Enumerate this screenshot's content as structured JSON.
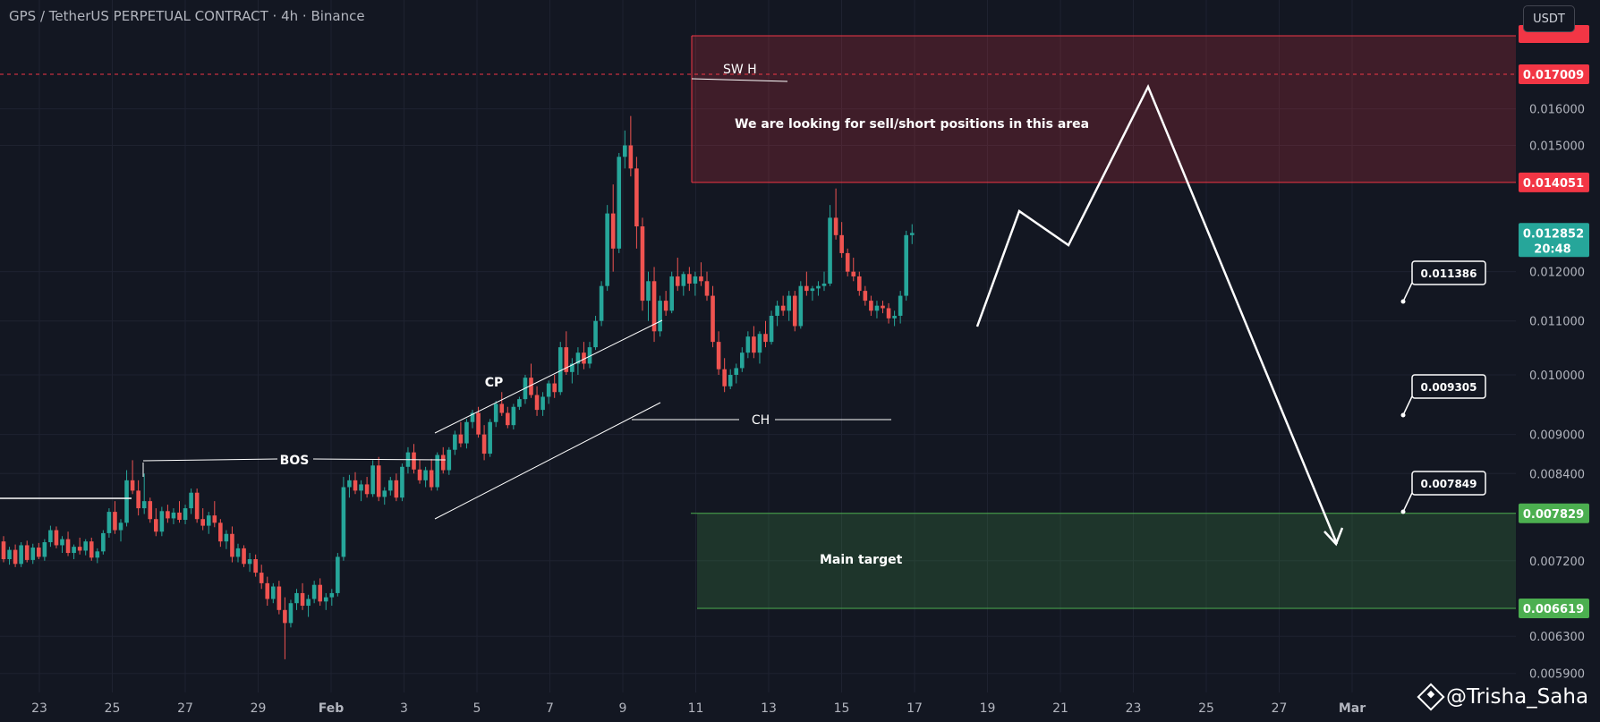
{
  "header": {
    "title": "GPS / TetherUS PERPETUAL CONTRACT · 4h · Binance",
    "currency": "USDT"
  },
  "watermark": "@Trisha_Saha",
  "colors": {
    "background": "#131722",
    "up": "#26a69a",
    "down": "#ef5350",
    "sell_zone": "#f23645",
    "target_zone": "#4caf50",
    "projection": "#ffffff"
  },
  "chart_data": {
    "type": "candlestick",
    "y_scale": "log",
    "price_axis": {
      "ticks": [
        "0.016000",
        "0.015000",
        "0.012000",
        "0.011000",
        "0.010000",
        "0.009000",
        "0.008400",
        "0.007200",
        "0.006300",
        "0.005900"
      ],
      "labels": [
        {
          "value": "0.017009",
          "kind": "line",
          "color": "#f23645"
        },
        {
          "value": "0.014051",
          "kind": "line",
          "color": "#f23645"
        },
        {
          "value": "0.012852",
          "kind": "last",
          "color": "#26a69a",
          "countdown": "20:48"
        },
        {
          "value": "0.007829",
          "kind": "line",
          "color": "#4caf50"
        },
        {
          "value": "0.006619",
          "kind": "line",
          "color": "#4caf50"
        }
      ]
    },
    "time_axis": [
      "23",
      "25",
      "27",
      "29",
      "Feb",
      "3",
      "5",
      "7",
      "9",
      "11",
      "13",
      "15",
      "17",
      "19",
      "21",
      "23",
      "25",
      "27",
      "Mar"
    ],
    "candles": [
      [
        0.00745,
        0.00752,
        0.00718,
        0.00722
      ],
      [
        0.00722,
        0.00738,
        0.00715,
        0.00734
      ],
      [
        0.00734,
        0.00741,
        0.00712,
        0.00716
      ],
      [
        0.00716,
        0.00744,
        0.00712,
        0.0074
      ],
      [
        0.0074,
        0.00746,
        0.00718,
        0.00721
      ],
      [
        0.00721,
        0.00742,
        0.00716,
        0.00737
      ],
      [
        0.00737,
        0.00743,
        0.00722,
        0.00725
      ],
      [
        0.00725,
        0.00748,
        0.0072,
        0.00744
      ],
      [
        0.00744,
        0.00766,
        0.00738,
        0.0076
      ],
      [
        0.0076,
        0.00765,
        0.00736,
        0.0074
      ],
      [
        0.0074,
        0.00752,
        0.0073,
        0.00748
      ],
      [
        0.00748,
        0.00758,
        0.00726,
        0.0073
      ],
      [
        0.0073,
        0.00741,
        0.00722,
        0.00738
      ],
      [
        0.00738,
        0.0075,
        0.00728,
        0.00733
      ],
      [
        0.00733,
        0.00748,
        0.00727,
        0.00745
      ],
      [
        0.00745,
        0.0075,
        0.0072,
        0.00724
      ],
      [
        0.00724,
        0.00736,
        0.00717,
        0.00732
      ],
      [
        0.00732,
        0.0076,
        0.00728,
        0.00756
      ],
      [
        0.00756,
        0.0079,
        0.0075,
        0.00785
      ],
      [
        0.00785,
        0.008,
        0.00755,
        0.0076
      ],
      [
        0.0076,
        0.00775,
        0.00745,
        0.0077
      ],
      [
        0.0077,
        0.00845,
        0.00765,
        0.0083
      ],
      [
        0.0083,
        0.0086,
        0.0081,
        0.00815
      ],
      [
        0.00815,
        0.0083,
        0.0078,
        0.0079
      ],
      [
        0.0079,
        0.0084,
        0.00782,
        0.008
      ],
      [
        0.008,
        0.00805,
        0.0077,
        0.00775
      ],
      [
        0.00775,
        0.0079,
        0.00752,
        0.00758
      ],
      [
        0.00758,
        0.00792,
        0.00752,
        0.00786
      ],
      [
        0.00786,
        0.00795,
        0.0077,
        0.00776
      ],
      [
        0.00776,
        0.0079,
        0.00768,
        0.00784
      ],
      [
        0.00784,
        0.008,
        0.0077,
        0.00774
      ],
      [
        0.00774,
        0.00795,
        0.00768,
        0.0079
      ],
      [
        0.0079,
        0.00818,
        0.00782,
        0.00812
      ],
      [
        0.00812,
        0.00818,
        0.0077,
        0.00775
      ],
      [
        0.00775,
        0.0079,
        0.0076,
        0.00766
      ],
      [
        0.00766,
        0.00785,
        0.00755,
        0.0078
      ],
      [
        0.0078,
        0.008,
        0.00764,
        0.0077
      ],
      [
        0.0077,
        0.00775,
        0.00738,
        0.00745
      ],
      [
        0.00745,
        0.0076,
        0.00735,
        0.00755
      ],
      [
        0.00755,
        0.00765,
        0.00718,
        0.00725
      ],
      [
        0.00725,
        0.00742,
        0.00718,
        0.00736
      ],
      [
        0.00736,
        0.0074,
        0.00712,
        0.00716
      ],
      [
        0.00716,
        0.0073,
        0.00706,
        0.00722
      ],
      [
        0.00722,
        0.00728,
        0.007,
        0.00705
      ],
      [
        0.00705,
        0.00715,
        0.00685,
        0.00692
      ],
      [
        0.00692,
        0.007,
        0.00665,
        0.00673
      ],
      [
        0.00673,
        0.00692,
        0.00668,
        0.00688
      ],
      [
        0.00688,
        0.00695,
        0.00655,
        0.0066
      ],
      [
        0.0066,
        0.00675,
        0.00605,
        0.00645
      ],
      [
        0.00645,
        0.00672,
        0.0064,
        0.00668
      ],
      [
        0.00668,
        0.00685,
        0.0066,
        0.0068
      ],
      [
        0.0068,
        0.00692,
        0.0066,
        0.00665
      ],
      [
        0.00665,
        0.00678,
        0.00652,
        0.00673
      ],
      [
        0.00673,
        0.00695,
        0.00668,
        0.0069
      ],
      [
        0.0069,
        0.00698,
        0.00665,
        0.0067
      ],
      [
        0.0067,
        0.0068,
        0.0066,
        0.00675
      ],
      [
        0.00675,
        0.00685,
        0.00665,
        0.0068
      ],
      [
        0.0068,
        0.0073,
        0.00676,
        0.00725
      ],
      [
        0.00725,
        0.00835,
        0.0072,
        0.0082
      ],
      [
        0.0082,
        0.00838,
        0.00805,
        0.0083
      ],
      [
        0.0083,
        0.00842,
        0.0081,
        0.00815
      ],
      [
        0.00815,
        0.0083,
        0.008,
        0.00824
      ],
      [
        0.00824,
        0.00835,
        0.00805,
        0.0081
      ],
      [
        0.0081,
        0.0086,
        0.00806,
        0.00852
      ],
      [
        0.00852,
        0.00865,
        0.008,
        0.00806
      ],
      [
        0.00806,
        0.0082,
        0.00795,
        0.00815
      ],
      [
        0.00815,
        0.00835,
        0.00808,
        0.0083
      ],
      [
        0.0083,
        0.0084,
        0.008,
        0.00805
      ],
      [
        0.00805,
        0.00855,
        0.008,
        0.0085
      ],
      [
        0.0085,
        0.0088,
        0.0084,
        0.00872
      ],
      [
        0.00872,
        0.00885,
        0.0084,
        0.00846
      ],
      [
        0.00846,
        0.0086,
        0.00825,
        0.0083
      ],
      [
        0.0083,
        0.0085,
        0.0082,
        0.00845
      ],
      [
        0.00845,
        0.00862,
        0.00815,
        0.0082
      ],
      [
        0.0082,
        0.00872,
        0.00815,
        0.00868
      ],
      [
        0.00868,
        0.0088,
        0.0084,
        0.00845
      ],
      [
        0.00845,
        0.0088,
        0.00838,
        0.00876
      ],
      [
        0.00876,
        0.00906,
        0.00868,
        0.009
      ],
      [
        0.009,
        0.0092,
        0.0088,
        0.00886
      ],
      [
        0.00886,
        0.00925,
        0.00878,
        0.0092
      ],
      [
        0.0092,
        0.0094,
        0.0091,
        0.00935
      ],
      [
        0.00935,
        0.00945,
        0.00895,
        0.009
      ],
      [
        0.009,
        0.00915,
        0.0086,
        0.0087
      ],
      [
        0.0087,
        0.00925,
        0.00865,
        0.0092
      ],
      [
        0.0092,
        0.00955,
        0.00912,
        0.0095
      ],
      [
        0.0095,
        0.0097,
        0.0093,
        0.00935
      ],
      [
        0.00935,
        0.00945,
        0.0091,
        0.00915
      ],
      [
        0.00915,
        0.0095,
        0.00908,
        0.00945
      ],
      [
        0.00945,
        0.00962,
        0.0094,
        0.00958
      ],
      [
        0.00958,
        0.01,
        0.0095,
        0.00995
      ],
      [
        0.00995,
        0.0102,
        0.0096,
        0.00965
      ],
      [
        0.00965,
        0.0098,
        0.0093,
        0.0094
      ],
      [
        0.0094,
        0.0097,
        0.0093,
        0.00962
      ],
      [
        0.00962,
        0.0099,
        0.0095,
        0.00985
      ],
      [
        0.00985,
        0.01,
        0.0096,
        0.0097
      ],
      [
        0.0097,
        0.0106,
        0.00965,
        0.0105
      ],
      [
        0.0105,
        0.0108,
        0.01,
        0.01005
      ],
      [
        0.01005,
        0.0103,
        0.00985,
        0.0102
      ],
      [
        0.0102,
        0.0105,
        0.01,
        0.0104
      ],
      [
        0.0104,
        0.0106,
        0.0101,
        0.0102
      ],
      [
        0.0102,
        0.0106,
        0.01012,
        0.0105
      ],
      [
        0.0105,
        0.0111,
        0.01045,
        0.011
      ],
      [
        0.011,
        0.0118,
        0.0109,
        0.0117
      ],
      [
        0.0117,
        0.0135,
        0.0116,
        0.0133
      ],
      [
        0.0133,
        0.014,
        0.012,
        0.0125
      ],
      [
        0.0125,
        0.0148,
        0.0124,
        0.0147
      ],
      [
        0.0147,
        0.0154,
        0.0144,
        0.015
      ],
      [
        0.015,
        0.0158,
        0.0142,
        0.0144
      ],
      [
        0.0144,
        0.0147,
        0.0125,
        0.013
      ],
      [
        0.013,
        0.0132,
        0.0112,
        0.0114
      ],
      [
        0.0114,
        0.012,
        0.011,
        0.0118
      ],
      [
        0.0118,
        0.0121,
        0.0106,
        0.0108
      ],
      [
        0.0108,
        0.0115,
        0.0107,
        0.0114
      ],
      [
        0.0114,
        0.0116,
        0.0111,
        0.0112
      ],
      [
        0.0112,
        0.012,
        0.01115,
        0.0119
      ],
      [
        0.0119,
        0.0123,
        0.0116,
        0.0117
      ],
      [
        0.0117,
        0.012,
        0.0115,
        0.01195
      ],
      [
        0.01195,
        0.0121,
        0.0116,
        0.01175
      ],
      [
        0.01175,
        0.012,
        0.0115,
        0.0119
      ],
      [
        0.0119,
        0.0122,
        0.0117,
        0.0118
      ],
      [
        0.0118,
        0.012,
        0.0114,
        0.0115
      ],
      [
        0.0115,
        0.0117,
        0.0105,
        0.0106
      ],
      [
        0.0106,
        0.0108,
        0.01,
        0.0101
      ],
      [
        0.0101,
        0.0103,
        0.0097,
        0.0098
      ],
      [
        0.0098,
        0.0101,
        0.00975,
        0.01
      ],
      [
        0.01,
        0.0102,
        0.00985,
        0.01012
      ],
      [
        0.01012,
        0.0105,
        0.01005,
        0.0104
      ],
      [
        0.0104,
        0.0108,
        0.0103,
        0.0107
      ],
      [
        0.0107,
        0.0109,
        0.0103,
        0.0104
      ],
      [
        0.0104,
        0.0108,
        0.0102,
        0.01075
      ],
      [
        0.01075,
        0.011,
        0.0105,
        0.0106
      ],
      [
        0.0106,
        0.0112,
        0.01055,
        0.0111
      ],
      [
        0.0111,
        0.0114,
        0.0109,
        0.0113
      ],
      [
        0.0113,
        0.0115,
        0.0111,
        0.0112
      ],
      [
        0.0112,
        0.0116,
        0.011,
        0.0115
      ],
      [
        0.0115,
        0.0116,
        0.0108,
        0.0109
      ],
      [
        0.0109,
        0.0118,
        0.01085,
        0.0117
      ],
      [
        0.0117,
        0.012,
        0.0115,
        0.0116
      ],
      [
        0.0116,
        0.0117,
        0.0114,
        0.01165
      ],
      [
        0.01165,
        0.0118,
        0.0115,
        0.0117
      ],
      [
        0.0117,
        0.012,
        0.0116,
        0.01175
      ],
      [
        0.01175,
        0.0135,
        0.0117,
        0.0132
      ],
      [
        0.0132,
        0.0139,
        0.0127,
        0.0128
      ],
      [
        0.0128,
        0.0131,
        0.0123,
        0.0124
      ],
      [
        0.0124,
        0.0125,
        0.0119,
        0.012
      ],
      [
        0.012,
        0.0123,
        0.0118,
        0.0119
      ],
      [
        0.0119,
        0.012,
        0.0115,
        0.0116
      ],
      [
        0.0116,
        0.0117,
        0.0113,
        0.0114
      ],
      [
        0.0114,
        0.0115,
        0.0111,
        0.0112
      ],
      [
        0.0112,
        0.0114,
        0.01105,
        0.0113
      ],
      [
        0.0113,
        0.0114,
        0.01115,
        0.01125
      ],
      [
        0.01125,
        0.01135,
        0.01095,
        0.01105
      ],
      [
        0.01105,
        0.0112,
        0.0109,
        0.0111
      ],
      [
        0.0111,
        0.0116,
        0.01095,
        0.0115
      ],
      [
        0.0115,
        0.0129,
        0.0114,
        0.0128
      ],
      [
        0.0128,
        0.01305,
        0.0126,
        0.01285
      ]
    ],
    "zones": [
      {
        "label": "We are looking for sell/short positions in this area",
        "top": 0.018,
        "bottom": 0.014051,
        "color": "#f23645"
      },
      {
        "label": "Main target",
        "top": 0.007829,
        "bottom": 0.006619,
        "color": "#4caf50"
      }
    ],
    "annotations": [
      "SW H",
      "CP",
      "BOS",
      "CH"
    ],
    "target_labels": [
      "0.011386",
      "0.009305",
      "0.007849"
    ]
  }
}
